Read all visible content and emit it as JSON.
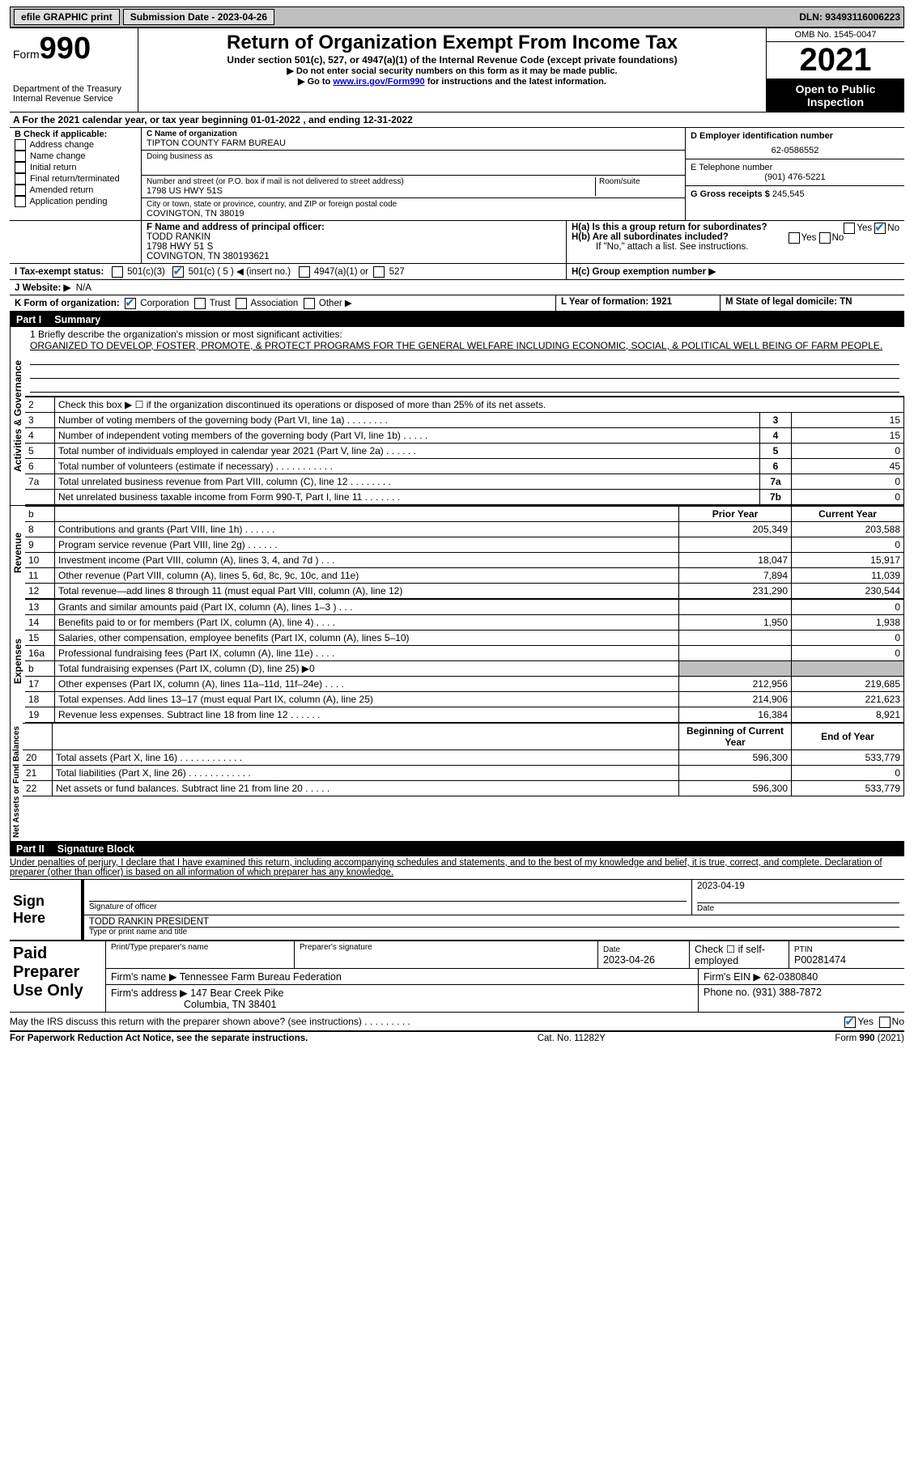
{
  "topbar": {
    "efile": "efile GRAPHIC print",
    "submission": "Submission Date - 2023-04-26",
    "dln": "DLN: 93493116006223"
  },
  "header": {
    "form_word": "Form",
    "form_num": "990",
    "title": "Return of Organization Exempt From Income Tax",
    "subtitle": "Under section 501(c), 527, or 4947(a)(1) of the Internal Revenue Code (except private foundations)",
    "warn1": "▶ Do not enter social security numbers on this form as it may be made public.",
    "warn2_pre": "▶ Go to ",
    "warn2_link": "www.irs.gov/Form990",
    "warn2_post": " for instructions and the latest information.",
    "dept": "Department of the Treasury",
    "irs": "Internal Revenue Service",
    "omb": "OMB No. 1545-0047",
    "year": "2021",
    "open": "Open to Public Inspection"
  },
  "rowA": "A For the 2021 calendar year, or tax year beginning 01-01-2022    , and ending 12-31-2022",
  "boxB": {
    "title": "B Check if applicable:",
    "opts": [
      "Address change",
      "Name change",
      "Initial return",
      "Final return/terminated",
      "Amended return",
      "Application pending"
    ]
  },
  "boxC": {
    "name_label": "C Name of organization",
    "name": "TIPTON COUNTY FARM BUREAU",
    "dba_label": "Doing business as",
    "street_label": "Number and street (or P.O. box if mail is not delivered to street address)",
    "room_label": "Room/suite",
    "street": "1798 US HWY 51S",
    "city_label": "City or town, state or province, country, and ZIP or foreign postal code",
    "city": "COVINGTON, TN  38019"
  },
  "boxD": {
    "ein_label": "D Employer identification number",
    "ein": "62-0586552",
    "phone_label": "E Telephone number",
    "phone": "(901) 476-5221",
    "gross_label": "G Gross receipts $",
    "gross": "245,545"
  },
  "boxF": {
    "label": "F  Name and address of principal officer:",
    "name": "TODD RANKIN",
    "addr1": "1798 HWY 51 S",
    "addr2": "COVINGTON, TN  380193621"
  },
  "boxH": {
    "a": "H(a)  Is this a group return for subordinates?",
    "b": "H(b)  Are all subordinates included?",
    "b_note": "If \"No,\" attach a list. See instructions.",
    "c": "H(c)  Group exemption number ▶",
    "yes": "Yes",
    "no": "No"
  },
  "rowI": {
    "label": "I  Tax-exempt status:",
    "o1": "501(c)(3)",
    "o2": "501(c) ( 5 ) ◀ (insert no.)",
    "o3": "4947(a)(1) or",
    "o4": "527"
  },
  "rowJ": {
    "label": "J  Website: ▶",
    "val": "N/A"
  },
  "rowK": {
    "label": "K Form of organization:",
    "o1": "Corporation",
    "o2": "Trust",
    "o3": "Association",
    "o4": "Other ▶",
    "L": "L Year of formation: 1921",
    "M": "M State of legal domicile: TN"
  },
  "part1": {
    "tag": "Part I",
    "title": "Summary"
  },
  "side": {
    "act": "Activities & Governance",
    "rev": "Revenue",
    "exp": "Expenses",
    "net": "Net Assets or Fund Balances"
  },
  "mission": {
    "l1": "1   Briefly describe the organization's mission or most significant activities:",
    "text": "ORGANIZED TO DEVELOP, FOSTER, PROMOTE, & PROTECT PROGRAMS FOR THE GENERAL WELFARE INCLUDING ECONOMIC, SOCIAL, & POLITICAL WELL BEING OF FARM PEOPLE."
  },
  "lines_gov": [
    {
      "n": "2",
      "d": "Check this box ▶ ☐  if the organization discontinued its operations or disposed of more than 25% of its net assets.",
      "boxn": "",
      "v": ""
    },
    {
      "n": "3",
      "d": "Number of voting members of the governing body (Part VI, line 1a)   .     .     .     .     .     .     .     .",
      "boxn": "3",
      "v": "15"
    },
    {
      "n": "4",
      "d": "Number of independent voting members of the governing body (Part VI, line 1b)    .     .     .     .     .",
      "boxn": "4",
      "v": "15"
    },
    {
      "n": "5",
      "d": "Total number of individuals employed in calendar year 2021 (Part V, line 2a)   .     .     .     .     .     .",
      "boxn": "5",
      "v": "0"
    },
    {
      "n": "6",
      "d": "Total number of volunteers (estimate if necessary)     .     .     .     .     .     .     .     .     .     .     .",
      "boxn": "6",
      "v": "45"
    },
    {
      "n": "7a",
      "d": "Total unrelated business revenue from Part VIII, column (C), line 12    .     .     .     .     .     .     .     .",
      "boxn": "7a",
      "v": "0"
    },
    {
      "n": "",
      "d": "Net unrelated business taxable income from Form 990-T, Part I, line 11   .     .     .     .     .     .     .",
      "boxn": "7b",
      "v": "0"
    }
  ],
  "col_headers": {
    "prior": "Prior Year",
    "current": "Current Year",
    "boy": "Beginning of Current Year",
    "eoy": "End of Year"
  },
  "lines_rev": [
    {
      "n": "8",
      "d": "Contributions and grants (Part VIII, line 1h)    .     .     .     .     .     .",
      "p": "205,349",
      "c": "203,588"
    },
    {
      "n": "9",
      "d": "Program service revenue (Part VIII, line 2g)    .     .     .     .     .     .",
      "p": "",
      "c": "0"
    },
    {
      "n": "10",
      "d": "Investment income (Part VIII, column (A), lines 3, 4, and 7d )    .     .     .",
      "p": "18,047",
      "c": "15,917"
    },
    {
      "n": "11",
      "d": "Other revenue (Part VIII, column (A), lines 5, 6d, 8c, 9c, 10c, and 11e)",
      "p": "7,894",
      "c": "11,039"
    },
    {
      "n": "12",
      "d": "Total revenue—add lines 8 through 11 (must equal Part VIII, column (A), line 12)",
      "p": "231,290",
      "c": "230,544"
    }
  ],
  "lines_exp": [
    {
      "n": "13",
      "d": "Grants and similar amounts paid (Part IX, column (A), lines 1–3 )   .     .     .",
      "p": "",
      "c": "0"
    },
    {
      "n": "14",
      "d": "Benefits paid to or for members (Part IX, column (A), line 4)    .     .     .     .",
      "p": "1,950",
      "c": "1,938"
    },
    {
      "n": "15",
      "d": "Salaries, other compensation, employee benefits (Part IX, column (A), lines 5–10)",
      "p": "",
      "c": "0"
    },
    {
      "n": "16a",
      "d": "Professional fundraising fees (Part IX, column (A), line 11e)   .     .     .     .",
      "p": "",
      "c": "0"
    },
    {
      "n": "b",
      "d": "Total fundraising expenses (Part IX, column (D), line 25) ▶0",
      "p": "SHADE",
      "c": "SHADE"
    },
    {
      "n": "17",
      "d": "Other expenses (Part IX, column (A), lines 11a–11d, 11f–24e)    .     .     .     .",
      "p": "212,956",
      "c": "219,685"
    },
    {
      "n": "18",
      "d": "Total expenses. Add lines 13–17 (must equal Part IX, column (A), line 25)",
      "p": "214,906",
      "c": "221,623"
    },
    {
      "n": "19",
      "d": "Revenue less expenses. Subtract line 18 from line 12   .     .     .     .     .     .",
      "p": "16,384",
      "c": "8,921"
    }
  ],
  "lines_net": [
    {
      "n": "20",
      "d": "Total assets (Part X, line 16)   .     .     .     .     .     .     .     .     .     .     .     .",
      "p": "596,300",
      "c": "533,779"
    },
    {
      "n": "21",
      "d": "Total liabilities (Part X, line 26)   .     .     .     .     .     .     .     .     .     .     .     .",
      "p": "",
      "c": "0"
    },
    {
      "n": "22",
      "d": "Net assets or fund balances. Subtract line 21 from line 20    .     .     .     .     .",
      "p": "596,300",
      "c": "533,779"
    }
  ],
  "part2": {
    "tag": "Part II",
    "title": "Signature Block"
  },
  "perjury": "Under penalties of perjury, I declare that I have examined this return, including accompanying schedules and statements, and to the best of my knowledge and belief, it is true, correct, and complete. Declaration of preparer (other than officer) is based on all information of which preparer has any knowledge.",
  "sign": {
    "here": "Sign Here",
    "sig_label": "Signature of officer",
    "date": "2023-04-19",
    "date_label": "Date",
    "name": "TODD RANKIN  PRESIDENT",
    "name_label": "Type or print name and title"
  },
  "paid": {
    "title": "Paid Preparer Use Only",
    "h1": "Print/Type preparer's name",
    "h2": "Preparer's signature",
    "h3": "Date",
    "h3v": "2023-04-26",
    "h4": "Check ☐ if self-employed",
    "h5": "PTIN",
    "h5v": "P00281474",
    "firm_name_l": "Firm's name    ▶",
    "firm_name": "Tennessee Farm Bureau Federation",
    "firm_ein_l": "Firm's EIN ▶",
    "firm_ein": "62-0380840",
    "firm_addr_l": "Firm's address ▶",
    "firm_addr1": "147 Bear Creek Pike",
    "firm_addr2": "Columbia, TN  38401",
    "phone_l": "Phone no.",
    "phone": "(931) 388-7872"
  },
  "discuss": "May the IRS discuss this return with the preparer shown above? (see instructions)    .     .     .     .     .     .     .     .     .",
  "footer": {
    "l": "For Paperwork Reduction Act Notice, see the separate instructions.",
    "m": "Cat. No. 11282Y",
    "r": "Form 990 (2021)"
  }
}
